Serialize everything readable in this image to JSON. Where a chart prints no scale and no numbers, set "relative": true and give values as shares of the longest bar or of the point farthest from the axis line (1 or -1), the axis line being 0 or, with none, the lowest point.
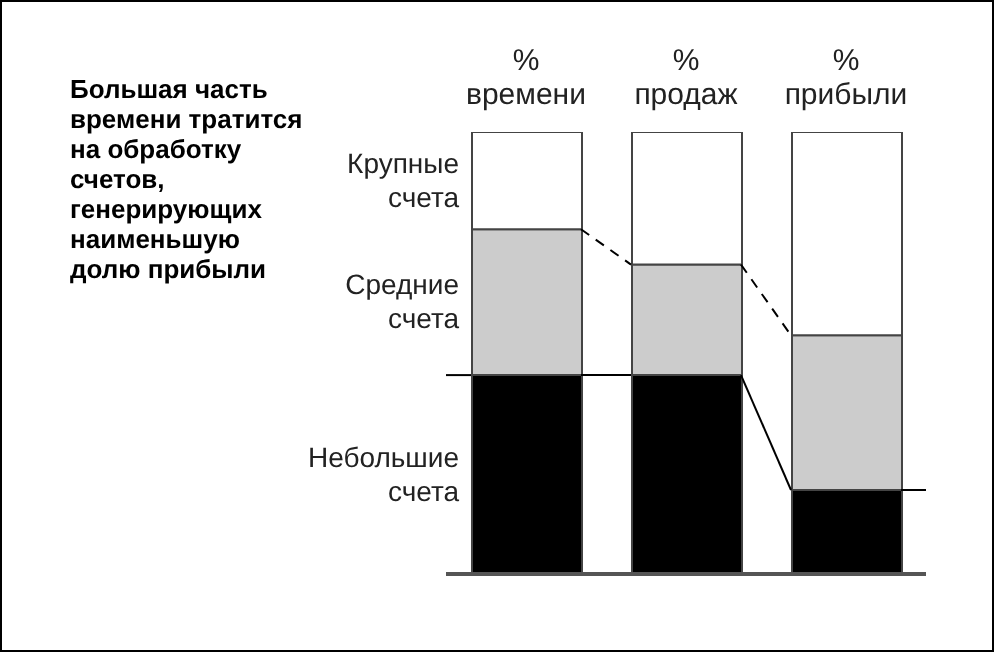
{
  "chart_data": {
    "type": "bar",
    "title": "Большая часть времени тратится на обработку счетов, генерирующих наименьшую долю прибыли",
    "categories": [
      "% времени",
      "% продаж",
      "% прибыли"
    ],
    "stacked": true,
    "relative": true,
    "legend": false,
    "grid": false,
    "series": [
      {
        "name": "Небольшие счета",
        "color": "#000000",
        "values": [
          0.45,
          0.45,
          0.19
        ]
      },
      {
        "name": "Средние счета",
        "color": "#cccccc",
        "values": [
          0.33,
          0.25,
          0.35
        ]
      },
      {
        "name": "Крупные счета",
        "color": "#ffffff",
        "values": [
          0.22,
          0.3,
          0.46
        ]
      }
    ]
  }
}
